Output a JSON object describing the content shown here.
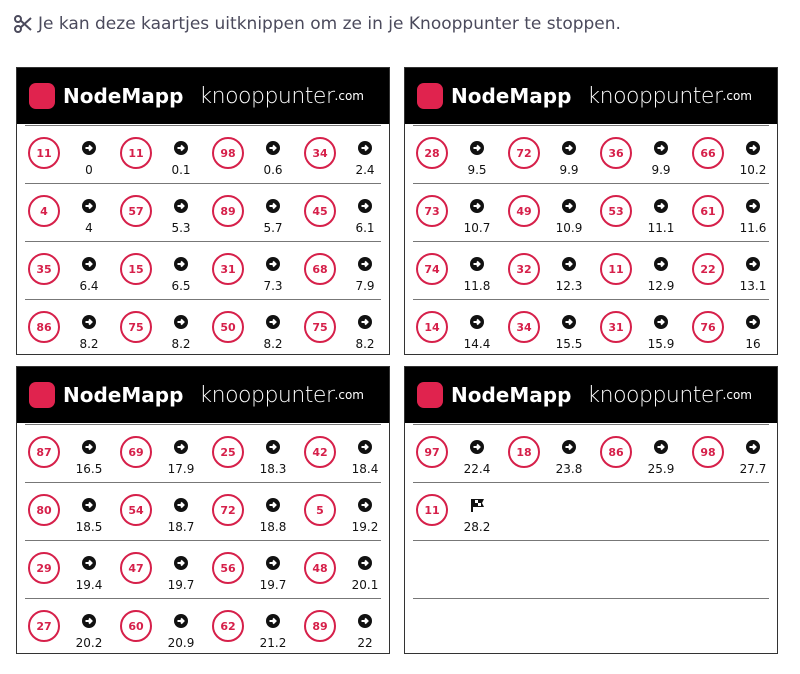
{
  "intro": "Je kan deze kaartjes uitknippen om ze in je Knooppunter te stoppen.",
  "logo": {
    "brand": "NodeMapp",
    "site": "knooppunter",
    "tld": ".com"
  },
  "cards": [
    {
      "entries": [
        {
          "node": "11",
          "km": "0"
        },
        {
          "node": "11",
          "km": "0.1"
        },
        {
          "node": "98",
          "km": "0.6"
        },
        {
          "node": "34",
          "km": "2.4"
        },
        {
          "node": "4",
          "km": "4"
        },
        {
          "node": "57",
          "km": "5.3"
        },
        {
          "node": "89",
          "km": "5.7"
        },
        {
          "node": "45",
          "km": "6.1"
        },
        {
          "node": "35",
          "km": "6.4"
        },
        {
          "node": "15",
          "km": "6.5"
        },
        {
          "node": "31",
          "km": "7.3"
        },
        {
          "node": "68",
          "km": "7.9"
        },
        {
          "node": "86",
          "km": "8.2"
        },
        {
          "node": "75",
          "km": "8.2"
        },
        {
          "node": "50",
          "km": "8.2"
        },
        {
          "node": "75",
          "km": "8.2"
        }
      ]
    },
    {
      "entries": [
        {
          "node": "28",
          "km": "9.5"
        },
        {
          "node": "72",
          "km": "9.9"
        },
        {
          "node": "36",
          "km": "9.9"
        },
        {
          "node": "66",
          "km": "10.2"
        },
        {
          "node": "73",
          "km": "10.7"
        },
        {
          "node": "49",
          "km": "10.9"
        },
        {
          "node": "53",
          "km": "11.1"
        },
        {
          "node": "61",
          "km": "11.6"
        },
        {
          "node": "74",
          "km": "11.8"
        },
        {
          "node": "32",
          "km": "12.3"
        },
        {
          "node": "11",
          "km": "12.9"
        },
        {
          "node": "22",
          "km": "13.1"
        },
        {
          "node": "14",
          "km": "14.4"
        },
        {
          "node": "34",
          "km": "15.5"
        },
        {
          "node": "31",
          "km": "15.9"
        },
        {
          "node": "76",
          "km": "16"
        }
      ]
    },
    {
      "entries": [
        {
          "node": "87",
          "km": "16.5"
        },
        {
          "node": "69",
          "km": "17.9"
        },
        {
          "node": "25",
          "km": "18.3"
        },
        {
          "node": "42",
          "km": "18.4"
        },
        {
          "node": "80",
          "km": "18.5"
        },
        {
          "node": "54",
          "km": "18.7"
        },
        {
          "node": "72",
          "km": "18.8"
        },
        {
          "node": "5",
          "km": "19.2"
        },
        {
          "node": "29",
          "km": "19.4"
        },
        {
          "node": "47",
          "km": "19.7"
        },
        {
          "node": "56",
          "km": "19.7"
        },
        {
          "node": "48",
          "km": "20.1"
        },
        {
          "node": "27",
          "km": "20.2"
        },
        {
          "node": "60",
          "km": "20.9"
        },
        {
          "node": "62",
          "km": "21.2"
        },
        {
          "node": "89",
          "km": "22"
        }
      ]
    },
    {
      "entries": [
        {
          "node": "97",
          "km": "22.4"
        },
        {
          "node": "18",
          "km": "23.8"
        },
        {
          "node": "86",
          "km": "25.9"
        },
        {
          "node": "98",
          "km": "27.7"
        },
        {
          "node": "11",
          "km": "28.2"
        }
      ]
    }
  ]
}
